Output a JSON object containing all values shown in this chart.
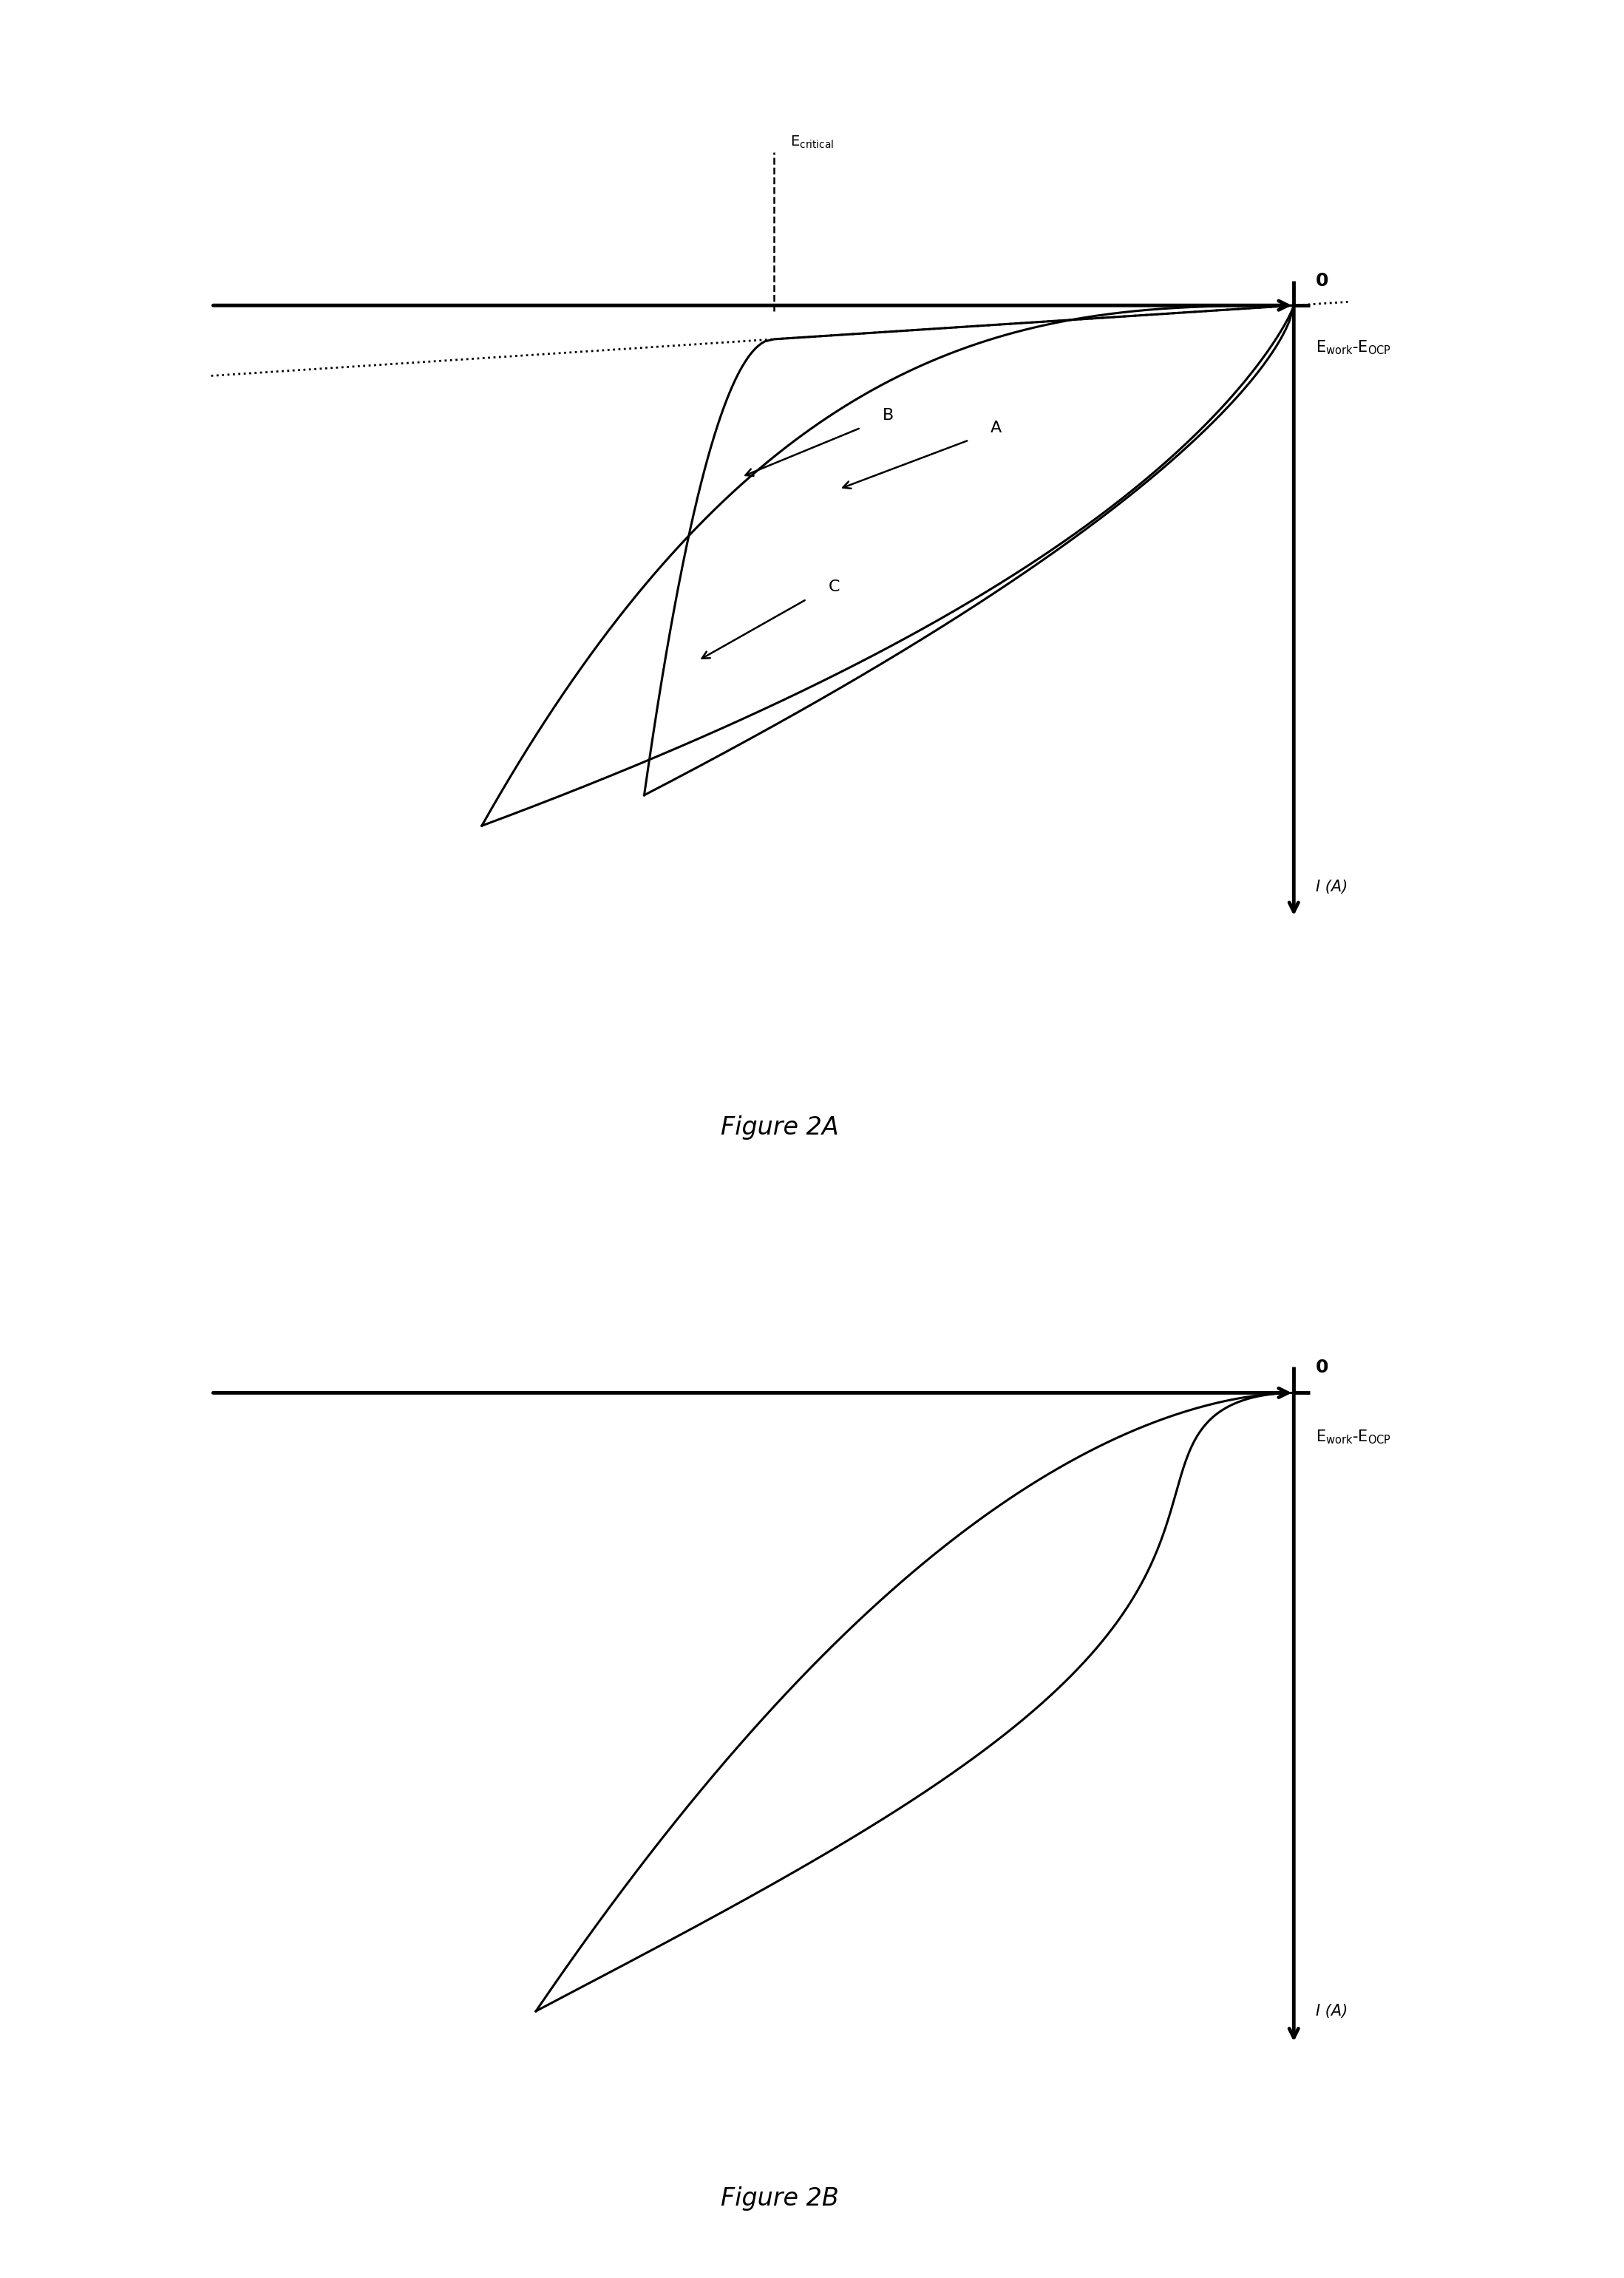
{
  "fig_width": 21.97,
  "fig_height": 30.82,
  "background_color": "#ffffff",
  "fig2a": {
    "title": "Figure 2A",
    "x_label": "E$_{work}$-E$_{OCP}$",
    "y_label": "I (A)",
    "origin_label": "0",
    "ecritical_label": "E$_{critical}$",
    "label_A": "A",
    "label_B": "B",
    "label_C": "C"
  },
  "fig2b": {
    "title": "Figure 2B",
    "x_label": "E$_{work}$-E$_{OCP}$",
    "y_label": "I (A)",
    "origin_label": "0"
  }
}
